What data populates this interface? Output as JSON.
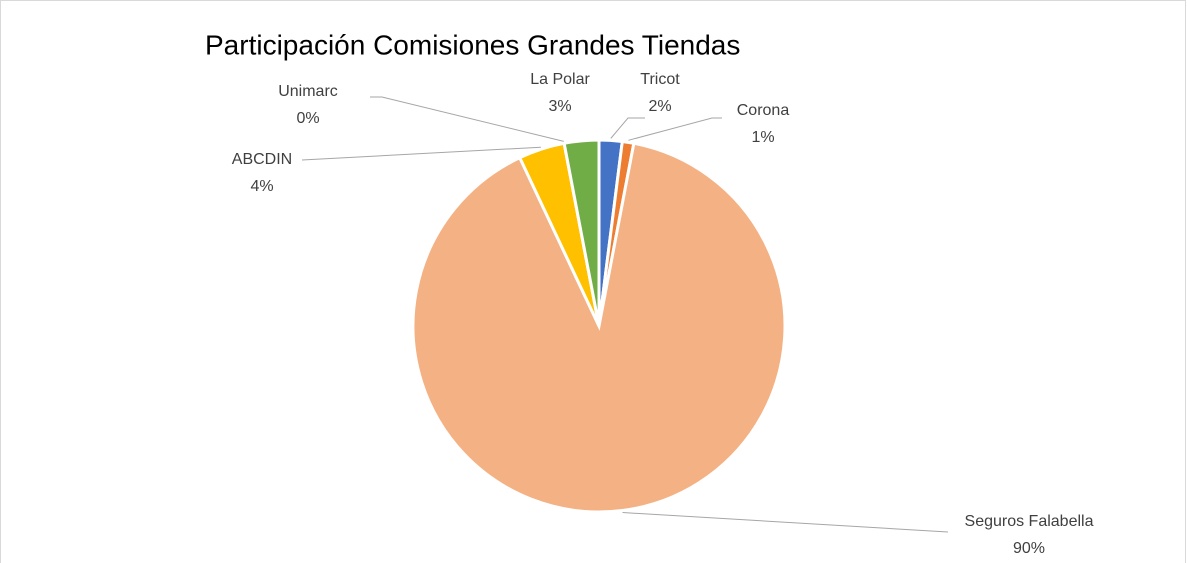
{
  "chart_data": {
    "type": "pie",
    "title": "Participación Comisiones Grandes Tiendas",
    "categories": [
      "Tricot",
      "Corona",
      "Seguros Falabella",
      "ABCDIN",
      "Unimarc",
      "La Polar"
    ],
    "values": [
      2,
      1,
      90,
      4,
      0,
      3
    ],
    "value_labels": [
      "2%",
      "1%",
      "90%",
      "4%",
      "0%",
      "3%"
    ],
    "colors": [
      "#4472c4",
      "#ed7d31",
      "#f4b183",
      "#ffc000",
      "#5b9bd5",
      "#70ad47"
    ]
  }
}
